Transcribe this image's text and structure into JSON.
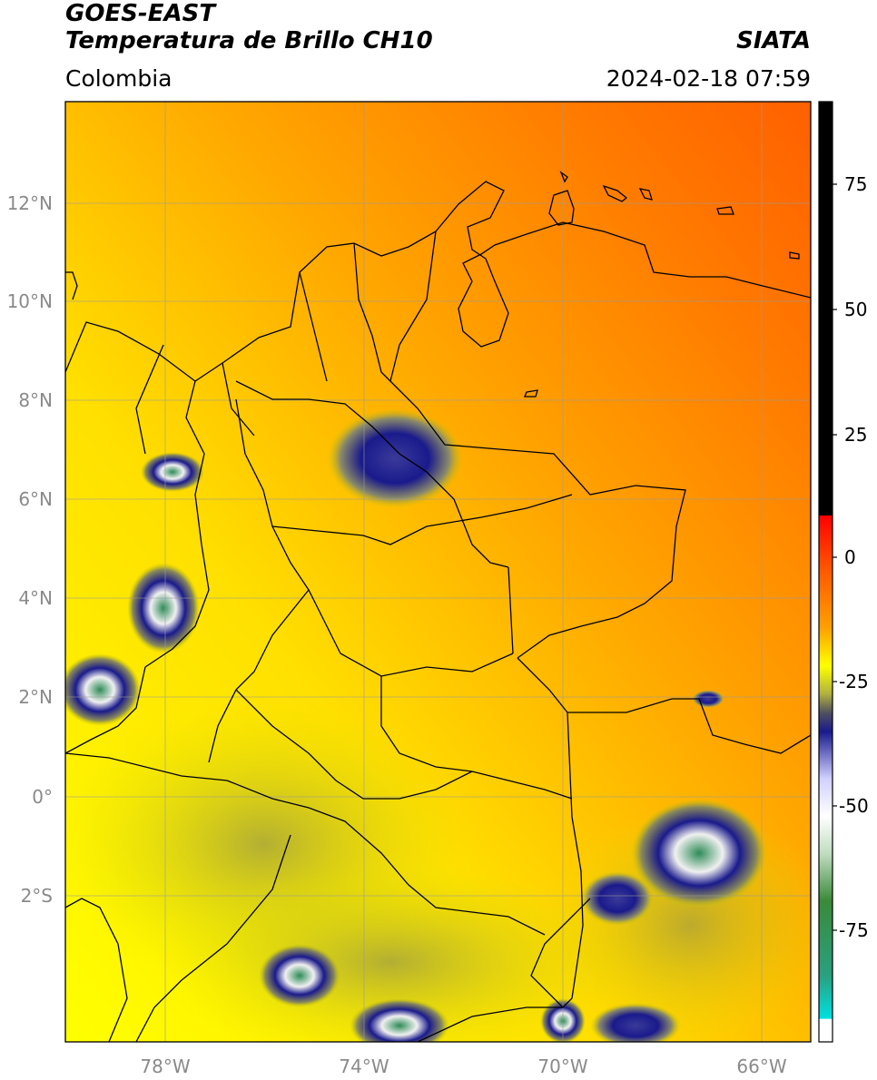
{
  "header": {
    "satellite": "GOES-EAST",
    "product": "Temperatura de Brillo CH10",
    "region": "Colombia",
    "agency": "SIATA",
    "datetime": "2024-02-18 07:59"
  },
  "axes": {
    "lat_ticks": [
      "12°N",
      "10°N",
      "8°N",
      "6°N",
      "4°N",
      "2°N",
      "0°",
      "2°S"
    ],
    "lon_ticks": [
      "78°W",
      "74°W",
      "70°W",
      "66°W"
    ]
  },
  "colorbar": {
    "ticks": [
      "75",
      "50",
      "25",
      "0",
      "-25",
      "-50",
      "-75"
    ]
  },
  "colors": {
    "warm": "#ff6a00",
    "mid": "#ffb000",
    "cold": "#ffff00",
    "cloud": "#1a1a8c",
    "deep": "#2e8b57"
  }
}
